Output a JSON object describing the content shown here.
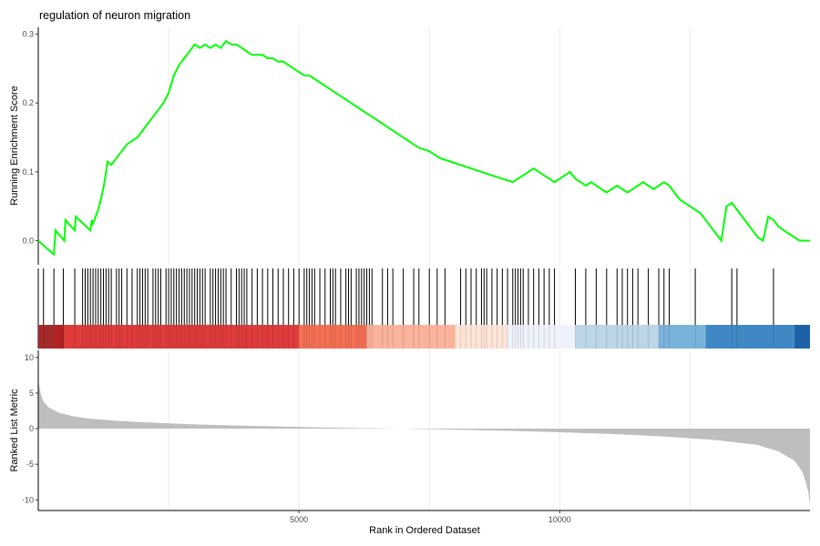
{
  "chart_data": {
    "type": "line",
    "title": "regulation of neuron migration",
    "xlabel": "Rank in Ordered Dataset",
    "x_ticks": [
      5000,
      10000
    ],
    "xlim": [
      0,
      14800
    ],
    "grid": true,
    "panels": {
      "running_score": {
        "ylabel": "Running Enrichment Score",
        "ylim": [
          -0.035,
          0.31
        ],
        "y_ticks": [
          0.0,
          0.1,
          0.2,
          0.3
        ],
        "y_tick_labels": [
          "0.0",
          "0.1",
          "0.2",
          "0.3"
        ],
        "color": "#00ff00",
        "series": {
          "x": [
            0,
            300,
            330,
            500,
            520,
            700,
            720,
            1000,
            1030,
            1050,
            1100,
            1150,
            1200,
            1260,
            1330,
            1400,
            1500,
            1600,
            1700,
            1800,
            1900,
            2000,
            2100,
            2200,
            2300,
            2400,
            2500,
            2600,
            2700,
            2800,
            2900,
            3000,
            3100,
            3200,
            3300,
            3400,
            3500,
            3600,
            3700,
            3800,
            3900,
            4000,
            4100,
            4200,
            4300,
            4400,
            4500,
            4600,
            4700,
            4800,
            4900,
            5000,
            5100,
            5200,
            5300,
            5400,
            5500,
            5600,
            5700,
            5800,
            5900,
            6000,
            6100,
            6200,
            6300,
            6400,
            6500,
            6700,
            6900,
            7100,
            7300,
            7500,
            7700,
            7900,
            8100,
            8300,
            8500,
            8700,
            8900,
            9100,
            9200,
            9300,
            9400,
            9500,
            9600,
            9700,
            9800,
            9900,
            10000,
            10100,
            10200,
            10300,
            10400,
            10500,
            10600,
            10700,
            10800,
            10900,
            11000,
            11100,
            11200,
            11300,
            11400,
            11500,
            11600,
            11700,
            11800,
            11900,
            12000,
            12100,
            12200,
            12300,
            12400,
            12500,
            12600,
            12700,
            12800,
            12900,
            13000,
            13100,
            13200,
            13300,
            13400,
            13500,
            13600,
            13700,
            13800,
            13900,
            14000,
            14100,
            14200,
            14300,
            14400,
            14500,
            14600,
            14800
          ],
          "y": [
            0.0,
            -0.02,
            0.015,
            0.0,
            0.03,
            0.015,
            0.035,
            0.015,
            0.03,
            0.025,
            0.035,
            0.045,
            0.06,
            0.08,
            0.115,
            0.11,
            0.12,
            0.13,
            0.14,
            0.145,
            0.15,
            0.16,
            0.17,
            0.18,
            0.19,
            0.2,
            0.215,
            0.24,
            0.255,
            0.265,
            0.275,
            0.285,
            0.28,
            0.285,
            0.28,
            0.285,
            0.28,
            0.29,
            0.285,
            0.285,
            0.28,
            0.275,
            0.27,
            0.27,
            0.27,
            0.265,
            0.265,
            0.26,
            0.26,
            0.255,
            0.25,
            0.245,
            0.24,
            0.24,
            0.235,
            0.23,
            0.225,
            0.22,
            0.215,
            0.21,
            0.205,
            0.2,
            0.195,
            0.19,
            0.185,
            0.18,
            0.175,
            0.165,
            0.155,
            0.145,
            0.135,
            0.13,
            0.12,
            0.115,
            0.11,
            0.105,
            0.1,
            0.095,
            0.09,
            0.085,
            0.09,
            0.095,
            0.1,
            0.105,
            0.1,
            0.095,
            0.09,
            0.085,
            0.09,
            0.095,
            0.1,
            0.09,
            0.085,
            0.08,
            0.085,
            0.08,
            0.075,
            0.07,
            0.075,
            0.08,
            0.075,
            0.07,
            0.075,
            0.08,
            0.085,
            0.08,
            0.075,
            0.08,
            0.085,
            0.08,
            0.07,
            0.06,
            0.055,
            0.05,
            0.045,
            0.04,
            0.03,
            0.02,
            0.01,
            0.0,
            0.05,
            0.055,
            0.045,
            0.035,
            0.025,
            0.015,
            0.005,
            0.0,
            0.035,
            0.03,
            0.02,
            0.015,
            0.01,
            0.005,
            0.0,
            0.0
          ]
        }
      },
      "gene_hits": {
        "positions": [
          100,
          300,
          480,
          700,
          850,
          900,
          950,
          1000,
          1050,
          1100,
          1150,
          1200,
          1250,
          1300,
          1350,
          1400,
          1500,
          1550,
          1600,
          1700,
          1800,
          1900,
          1950,
          2000,
          2050,
          2100,
          2200,
          2250,
          2300,
          2350,
          2450,
          2500,
          2550,
          2600,
          2650,
          2700,
          2750,
          2800,
          2850,
          2900,
          2950,
          3000,
          3050,
          3100,
          3150,
          3200,
          3300,
          3350,
          3400,
          3450,
          3500,
          3550,
          3600,
          3700,
          3800,
          3850,
          3900,
          3950,
          4000,
          4100,
          4200,
          4300,
          4400,
          4500,
          4600,
          4700,
          4800,
          4900,
          5000,
          5100,
          5150,
          5200,
          5250,
          5300,
          5400,
          5500,
          5600,
          5650,
          5700,
          5800,
          5900,
          5950,
          6000,
          6100,
          6150,
          6200,
          6250,
          6300,
          6350,
          6400,
          6600,
          6700,
          6800,
          7000,
          7200,
          7300,
          7500,
          7650,
          7800,
          8100,
          8200,
          8300,
          8400,
          8500,
          8550,
          8600,
          8700,
          8800,
          8900,
          9000,
          9100,
          9150,
          9200,
          9250,
          9300,
          9400,
          9500,
          9600,
          9700,
          9800,
          9900,
          10300,
          10500,
          10700,
          10900,
          11100,
          11200,
          11300,
          11400,
          11500,
          11700,
          11900,
          12000,
          12100,
          12600,
          13300,
          13400,
          14100
        ]
      },
      "ranked_metric": {
        "ylabel": "Ranked List Metric",
        "ylim": [
          -11.5,
          11
        ],
        "y_ticks": [
          10,
          5,
          0,
          -5,
          -10
        ],
        "y_tick_labels": [
          "10",
          "5",
          "0",
          "-5",
          "-10"
        ],
        "color": "#bebebe",
        "series": {
          "x": [
            0,
            20,
            50,
            100,
            200,
            400,
            700,
            1000,
            1500,
            2000,
            3000,
            4000,
            5000,
            6000,
            7000,
            8000,
            9000,
            10000,
            11000,
            12000,
            13000,
            13800,
            14200,
            14500,
            14650,
            14720,
            14770,
            14800
          ],
          "y": [
            6.8,
            6.0,
            4.8,
            3.8,
            3.0,
            2.2,
            1.7,
            1.4,
            1.1,
            0.9,
            0.6,
            0.4,
            0.25,
            0.1,
            0.0,
            -0.15,
            -0.3,
            -0.5,
            -0.75,
            -1.1,
            -1.6,
            -2.3,
            -3.2,
            -4.5,
            -6.0,
            -7.5,
            -9.0,
            -10.8
          ]
        }
      }
    },
    "colorbar": {
      "segments": [
        {
          "start": 0,
          "end": 300,
          "color": "#a52a2a"
        },
        {
          "start": 300,
          "end": 500,
          "color": "#b22222"
        },
        {
          "start": 500,
          "end": 5000,
          "color": "#e03c3c"
        },
        {
          "start": 5000,
          "end": 6300,
          "color": "#f57055"
        },
        {
          "start": 6300,
          "end": 8000,
          "color": "#fbb39b"
        },
        {
          "start": 8000,
          "end": 9000,
          "color": "#fde4d7"
        },
        {
          "start": 9000,
          "end": 10300,
          "color": "#eef2fb"
        },
        {
          "start": 10300,
          "end": 11900,
          "color": "#bcd5e7"
        },
        {
          "start": 11900,
          "end": 12800,
          "color": "#7ab3da"
        },
        {
          "start": 12800,
          "end": 14500,
          "color": "#3f88c4"
        },
        {
          "start": 14500,
          "end": 14800,
          "color": "#1d62a6"
        }
      ]
    }
  }
}
